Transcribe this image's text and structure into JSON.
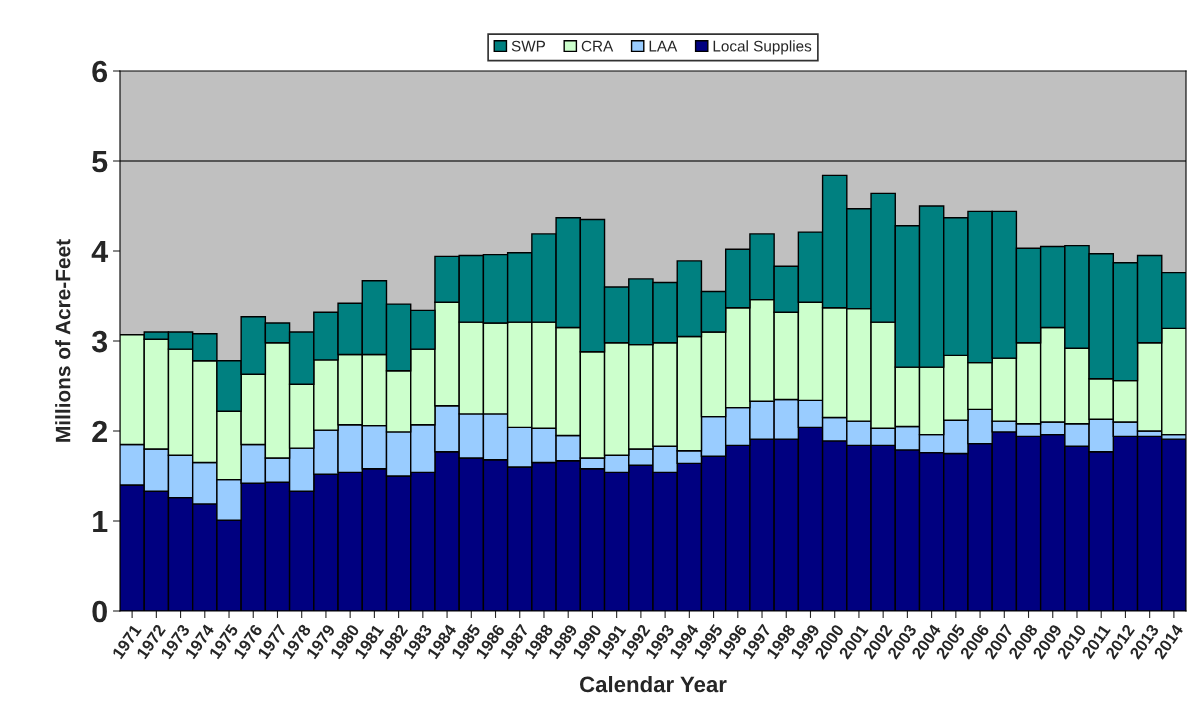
{
  "chart_data": {
    "type": "bar",
    "stacked": true,
    "xlabel": "Calendar Year",
    "ylabel": "Millions of Acre-Feet",
    "categories": [
      "1971",
      "1972",
      "1973",
      "1974",
      "1975",
      "1976",
      "1977",
      "1978",
      "1979",
      "1980",
      "1981",
      "1982",
      "1983",
      "1984",
      "1985",
      "1986",
      "1987",
      "1988",
      "1989",
      "1990",
      "1991",
      "1992",
      "1993",
      "1994",
      "1995",
      "1996",
      "1997",
      "1998",
      "1999",
      "2000",
      "2001",
      "2002",
      "2003",
      "2004",
      "2005",
      "2006",
      "2007",
      "2008",
      "2009",
      "2010",
      "2011",
      "2012",
      "2013",
      "2014"
    ],
    "series": [
      {
        "name": "Local Supplies",
        "color": "#000080",
        "values": [
          1.4,
          1.33,
          1.26,
          1.19,
          1.01,
          1.42,
          1.43,
          1.33,
          1.52,
          1.54,
          1.58,
          1.5,
          1.54,
          1.77,
          1.7,
          1.68,
          1.6,
          1.65,
          1.67,
          1.58,
          1.54,
          1.62,
          1.54,
          1.64,
          1.72,
          1.84,
          1.91,
          1.91,
          2.04,
          1.89,
          1.84,
          1.84,
          1.79,
          1.76,
          1.75,
          1.86,
          1.99,
          1.94,
          1.96,
          1.83,
          1.77,
          1.94,
          1.94,
          1.91
        ]
      },
      {
        "name": "LAA",
        "color": "#99ccff",
        "values": [
          0.45,
          0.47,
          0.47,
          0.46,
          0.45,
          0.43,
          0.27,
          0.48,
          0.49,
          0.53,
          0.48,
          0.49,
          0.53,
          0.51,
          0.49,
          0.51,
          0.44,
          0.38,
          0.28,
          0.12,
          0.19,
          0.18,
          0.29,
          0.14,
          0.44,
          0.42,
          0.42,
          0.44,
          0.3,
          0.26,
          0.27,
          0.19,
          0.26,
          0.2,
          0.37,
          0.38,
          0.12,
          0.14,
          0.14,
          0.25,
          0.36,
          0.16,
          0.06,
          0.05
        ]
      },
      {
        "name": "CRA",
        "color": "#ccffcc",
        "values": [
          1.22,
          1.22,
          1.18,
          1.13,
          0.76,
          0.78,
          1.28,
          0.71,
          0.78,
          0.78,
          0.79,
          0.68,
          0.84,
          1.15,
          1.02,
          1.01,
          1.17,
          1.18,
          1.2,
          1.18,
          1.25,
          1.16,
          1.15,
          1.27,
          0.94,
          1.11,
          1.13,
          0.97,
          1.09,
          1.22,
          1.25,
          1.18,
          0.66,
          0.75,
          0.72,
          0.52,
          0.7,
          0.9,
          1.05,
          0.84,
          0.45,
          0.46,
          0.98,
          1.18
        ]
      },
      {
        "name": "SWP",
        "color": "#008080",
        "values": [
          null,
          0.08,
          0.19,
          0.3,
          0.56,
          0.64,
          0.22,
          0.58,
          0.53,
          0.57,
          0.82,
          0.74,
          0.43,
          0.51,
          0.74,
          0.76,
          0.77,
          0.98,
          1.22,
          1.47,
          0.62,
          0.73,
          0.67,
          0.84,
          0.45,
          0.65,
          0.73,
          0.51,
          0.78,
          1.47,
          1.11,
          1.43,
          1.57,
          1.79,
          1.53,
          1.68,
          1.63,
          1.05,
          0.9,
          1.14,
          1.39,
          1.31,
          0.97,
          0.62
        ]
      }
    ],
    "ylim": [
      0,
      6
    ],
    "yticks": [
      0,
      1,
      2,
      3,
      4,
      5,
      6
    ],
    "ref_lines": [
      {
        "axis": "y",
        "value": 5,
        "color": "#333333"
      }
    ],
    "legend": "top",
    "grid": false
  }
}
